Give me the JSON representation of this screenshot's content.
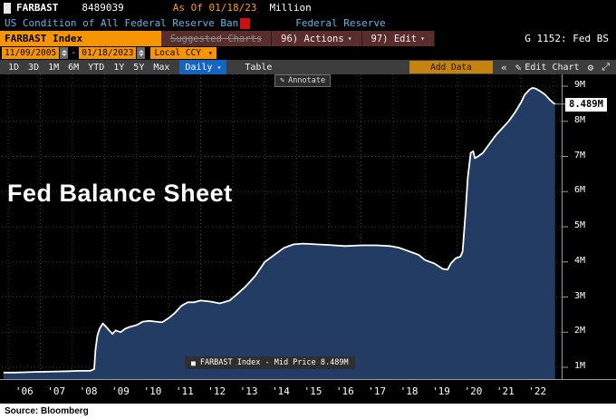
{
  "header": {
    "ticker": "FARBAST",
    "value": "8489039",
    "as_of": "As Of 01/18/23",
    "unit": "Million",
    "description": "US Condition of All Federal Reserve Ban",
    "source": "Federal Reserve"
  },
  "toolbar": {
    "security": "FARBAST Index",
    "suggested_charts": "Suggested Charts",
    "actions": "96) Actions",
    "edit": "97) Edit",
    "chart_id": "G 1152: Fed BS"
  },
  "range": {
    "start": "11/09/2005",
    "separator": "-",
    "end": "01/18/2023",
    "currency": "Local CCY"
  },
  "period_bar": {
    "periods": [
      "1D",
      "3D",
      "1M",
      "6M",
      "YTD",
      "1Y",
      "5Y",
      "Max"
    ],
    "frequency": "Daily",
    "table_label": "Table",
    "add_data_label": "Add Data",
    "edit_chart_label": "Edit Chart"
  },
  "chart": {
    "annotate_label": "Annotate",
    "title_overlay": "Fed Balance Sheet",
    "last_price_label": "8.489M",
    "legend": "FARBAST Index - Mid Price 8.489M"
  },
  "footer": {
    "source": "Source: Bloomberg"
  },
  "icons": {
    "chevron_down": "▾",
    "double_chevron_left": "«",
    "pencil": "✎",
    "gear": "⚙",
    "expand": "⤢",
    "square_marker": "■"
  },
  "colors": {
    "amber": "#f79500",
    "headline_blue": "#5fb7e8",
    "area_fill": "#223c63",
    "line": "#ffffff",
    "freq_blue": "#1565c0",
    "alert_red": "#cf1010"
  },
  "chart_data": {
    "type": "area",
    "title": "Fed Balance Sheet",
    "series_name": "FARBAST Index - Mid Price",
    "unit": "Million USD (M = millions of millions)",
    "last_value": 8.489,
    "xlim": [
      2005.8,
      2023.3
    ],
    "ylim": [
      0.67,
      9.34
    ],
    "grid": true,
    "y_ticks": [
      "9M",
      "8M",
      "7M",
      "6M",
      "5M",
      "4M",
      "3M",
      "2M",
      "1M"
    ],
    "y_tick_values": [
      9,
      8,
      7,
      6,
      5,
      4,
      3,
      2,
      1
    ],
    "x_ticks": [
      "'06",
      "'07",
      "'08",
      "'09",
      "'10",
      "'11",
      "'12",
      "'13",
      "'14",
      "'15",
      "'16",
      "'17",
      "'18",
      "'19",
      "'20",
      "'21",
      "'22"
    ],
    "x_tick_values": [
      2006,
      2007,
      2008,
      2009,
      2010,
      2011,
      2012,
      2013,
      2014,
      2015,
      2016,
      2017,
      2018,
      2019,
      2020,
      2021,
      2022
    ],
    "x": [
      2005.85,
      2006.2,
      2006.6,
      2007.0,
      2007.5,
      2007.9,
      2008.2,
      2008.55,
      2008.68,
      2008.72,
      2008.78,
      2008.85,
      2008.95,
      2009.05,
      2009.15,
      2009.25,
      2009.35,
      2009.5,
      2009.65,
      2009.8,
      2010.0,
      2010.2,
      2010.4,
      2010.6,
      2010.8,
      2011.0,
      2011.2,
      2011.4,
      2011.6,
      2011.8,
      2012.0,
      2012.3,
      2012.6,
      2012.9,
      2013.1,
      2013.4,
      2013.7,
      2014.0,
      2014.3,
      2014.6,
      2014.9,
      2015.2,
      2015.6,
      2016.0,
      2016.5,
      2017.0,
      2017.5,
      2017.9,
      2018.2,
      2018.5,
      2018.8,
      2019.0,
      2019.3,
      2019.55,
      2019.7,
      2019.8,
      2019.95,
      2020.1,
      2020.17,
      2020.25,
      2020.33,
      2020.42,
      2020.5,
      2020.55,
      2020.65,
      2020.8,
      2021.0,
      2021.2,
      2021.4,
      2021.6,
      2021.8,
      2022.0,
      2022.1,
      2022.25,
      2022.35,
      2022.45,
      2022.6,
      2022.75,
      2022.9,
      2023.0,
      2023.05
    ],
    "values": [
      0.85,
      0.85,
      0.86,
      0.87,
      0.88,
      0.89,
      0.9,
      0.9,
      0.95,
      1.5,
      1.9,
      2.1,
      2.25,
      2.15,
      2.05,
      1.95,
      2.05,
      2.0,
      2.1,
      2.15,
      2.2,
      2.3,
      2.32,
      2.3,
      2.28,
      2.4,
      2.55,
      2.75,
      2.85,
      2.85,
      2.9,
      2.87,
      2.82,
      2.9,
      3.05,
      3.3,
      3.6,
      4.0,
      4.2,
      4.4,
      4.5,
      4.52,
      4.5,
      4.48,
      4.45,
      4.47,
      4.47,
      4.45,
      4.4,
      4.3,
      4.2,
      4.05,
      3.95,
      3.8,
      3.78,
      3.95,
      4.1,
      4.15,
      4.3,
      5.3,
      6.4,
      7.1,
      7.15,
      6.95,
      7.0,
      7.1,
      7.35,
      7.6,
      7.8,
      8.0,
      8.25,
      8.55,
      8.75,
      8.9,
      8.95,
      8.93,
      8.85,
      8.75,
      8.6,
      8.52,
      8.489
    ]
  }
}
